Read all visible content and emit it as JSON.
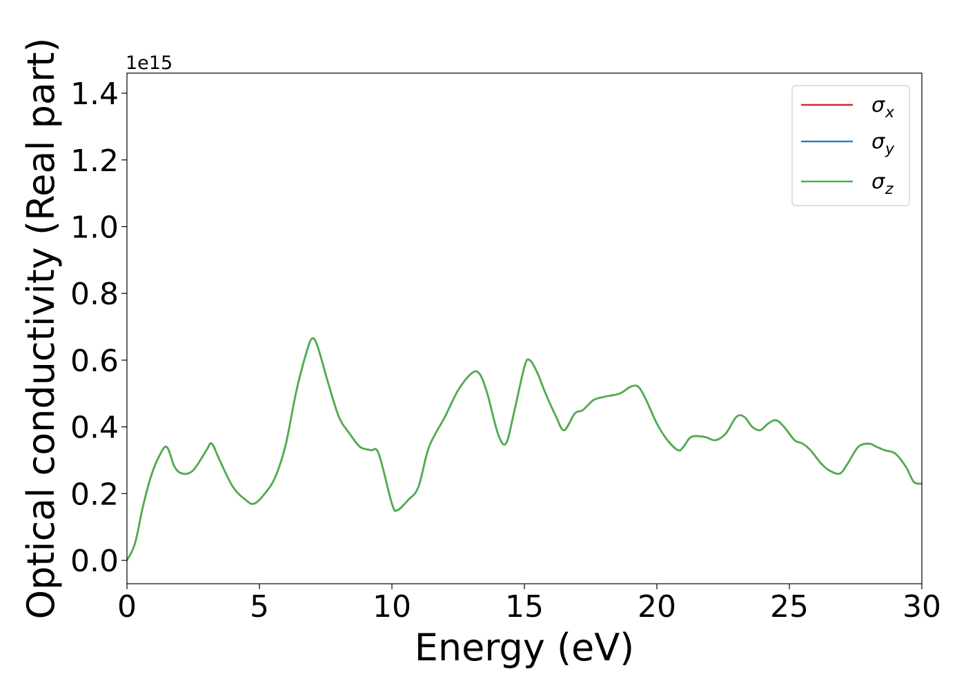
{
  "chart_data": {
    "type": "line",
    "xlabel": "Energy (eV)",
    "ylabel": "Optical conductivity (Real part)",
    "y_exponent_label": "1e15",
    "xlim": [
      0,
      30
    ],
    "ylim": [
      -0.07,
      1.46
    ],
    "x_ticks": [
      0,
      5,
      10,
      15,
      20,
      25,
      30
    ],
    "y_ticks": [
      0.0,
      0.2,
      0.4,
      0.6,
      0.8,
      1.0,
      1.2,
      1.4
    ],
    "x_tick_labels": [
      "0",
      "5",
      "10",
      "15",
      "20",
      "25",
      "30"
    ],
    "y_tick_labels": [
      "0.0",
      "0.2",
      "0.4",
      "0.6",
      "0.8",
      "1.0",
      "1.2",
      "1.4"
    ],
    "grid": false,
    "legend_position": "top-right",
    "series": [
      {
        "name": "σx",
        "symbol": "σ",
        "subscript": "x",
        "color": "#d62728",
        "x": [
          0,
          0.3,
          0.6,
          0.9,
          1.2,
          1.5,
          1.8,
          2.1,
          2.5,
          3.0,
          3.2,
          3.5,
          4.0,
          4.5,
          4.8,
          5.2,
          5.6,
          6.0,
          6.4,
          6.8,
          7.0,
          7.2,
          7.6,
          8.0,
          8.4,
          8.8,
          9.2,
          9.5,
          10.0,
          10.2,
          10.6,
          11.0,
          11.4,
          12.0,
          12.5,
          13.0,
          13.3,
          13.6,
          14.0,
          14.3,
          14.6,
          15.0,
          15.2,
          15.5,
          15.8,
          16.2,
          16.5,
          16.9,
          17.2,
          17.6,
          18.0,
          18.6,
          19.0,
          19.3,
          19.6,
          20.0,
          20.4,
          20.8,
          21.0,
          21.3,
          21.8,
          22.2,
          22.6,
          23.0,
          23.3,
          23.6,
          23.9,
          24.2,
          24.5,
          24.8,
          25.2,
          25.5,
          25.8,
          26.2,
          26.5,
          26.9,
          27.2,
          27.6,
          28.0,
          28.3,
          28.6,
          29.0,
          29.4,
          29.7,
          30.0
        ],
        "values": [
          0.0,
          0.05,
          0.16,
          0.25,
          0.31,
          0.34,
          0.28,
          0.26,
          0.27,
          0.33,
          0.35,
          0.3,
          0.22,
          0.18,
          0.17,
          0.2,
          0.25,
          0.35,
          0.51,
          0.63,
          0.665,
          0.64,
          0.53,
          0.43,
          0.38,
          0.34,
          0.33,
          0.32,
          0.17,
          0.15,
          0.18,
          0.22,
          0.34,
          0.43,
          0.51,
          0.56,
          0.56,
          0.5,
          0.38,
          0.35,
          0.44,
          0.58,
          0.6,
          0.56,
          0.5,
          0.43,
          0.39,
          0.44,
          0.45,
          0.48,
          0.49,
          0.5,
          0.52,
          0.52,
          0.48,
          0.41,
          0.36,
          0.33,
          0.34,
          0.37,
          0.37,
          0.36,
          0.38,
          0.43,
          0.43,
          0.4,
          0.39,
          0.41,
          0.42,
          0.4,
          0.36,
          0.35,
          0.33,
          0.29,
          0.27,
          0.26,
          0.29,
          0.34,
          0.35,
          0.34,
          0.33,
          0.32,
          0.28,
          0.235,
          0.23
        ]
      },
      {
        "name": "σy",
        "symbol": "σ",
        "subscript": "y",
        "color": "#377eb8",
        "x": [
          0,
          0.3,
          0.6,
          0.9,
          1.2,
          1.5,
          1.8,
          2.1,
          2.5,
          3.0,
          3.2,
          3.5,
          4.0,
          4.5,
          4.8,
          5.2,
          5.6,
          6.0,
          6.4,
          6.8,
          7.0,
          7.2,
          7.6,
          8.0,
          8.4,
          8.8,
          9.2,
          9.5,
          10.0,
          10.2,
          10.6,
          11.0,
          11.4,
          12.0,
          12.5,
          13.0,
          13.3,
          13.6,
          14.0,
          14.3,
          14.6,
          15.0,
          15.2,
          15.5,
          15.8,
          16.2,
          16.5,
          16.9,
          17.2,
          17.6,
          18.0,
          18.6,
          19.0,
          19.3,
          19.6,
          20.0,
          20.4,
          20.8,
          21.0,
          21.3,
          21.8,
          22.2,
          22.6,
          23.0,
          23.3,
          23.6,
          23.9,
          24.2,
          24.5,
          24.8,
          25.2,
          25.5,
          25.8,
          26.2,
          26.5,
          26.9,
          27.2,
          27.6,
          28.0,
          28.3,
          28.6,
          29.0,
          29.4,
          29.7,
          30.0
        ],
        "values": [
          0.0,
          0.05,
          0.16,
          0.25,
          0.31,
          0.34,
          0.28,
          0.26,
          0.27,
          0.33,
          0.35,
          0.3,
          0.22,
          0.18,
          0.17,
          0.2,
          0.25,
          0.35,
          0.51,
          0.63,
          0.665,
          0.64,
          0.53,
          0.43,
          0.38,
          0.34,
          0.33,
          0.32,
          0.17,
          0.15,
          0.18,
          0.22,
          0.34,
          0.43,
          0.51,
          0.56,
          0.56,
          0.5,
          0.38,
          0.35,
          0.44,
          0.58,
          0.6,
          0.56,
          0.5,
          0.43,
          0.39,
          0.44,
          0.45,
          0.48,
          0.49,
          0.5,
          0.52,
          0.52,
          0.48,
          0.41,
          0.36,
          0.33,
          0.34,
          0.37,
          0.37,
          0.36,
          0.38,
          0.43,
          0.43,
          0.4,
          0.39,
          0.41,
          0.42,
          0.4,
          0.36,
          0.35,
          0.33,
          0.29,
          0.27,
          0.26,
          0.29,
          0.34,
          0.35,
          0.34,
          0.33,
          0.32,
          0.28,
          0.235,
          0.23
        ]
      },
      {
        "name": "σz",
        "symbol": "σ",
        "subscript": "z",
        "color": "#4daf4a",
        "x": [
          0,
          0.3,
          0.6,
          0.9,
          1.2,
          1.5,
          1.8,
          2.1,
          2.5,
          3.0,
          3.2,
          3.5,
          4.0,
          4.5,
          4.8,
          5.2,
          5.6,
          6.0,
          6.4,
          6.8,
          7.0,
          7.2,
          7.6,
          8.0,
          8.4,
          8.8,
          9.2,
          9.5,
          10.0,
          10.2,
          10.6,
          11.0,
          11.4,
          12.0,
          12.5,
          13.0,
          13.3,
          13.6,
          14.0,
          14.3,
          14.6,
          15.0,
          15.2,
          15.5,
          15.8,
          16.2,
          16.5,
          16.9,
          17.2,
          17.6,
          18.0,
          18.6,
          19.0,
          19.3,
          19.6,
          20.0,
          20.4,
          20.8,
          21.0,
          21.3,
          21.8,
          22.2,
          22.6,
          23.0,
          23.3,
          23.6,
          23.9,
          24.2,
          24.5,
          24.8,
          25.2,
          25.5,
          25.8,
          26.2,
          26.5,
          26.9,
          27.2,
          27.6,
          28.0,
          28.3,
          28.6,
          29.0,
          29.4,
          29.7,
          30.0
        ],
        "values": [
          0.0,
          0.05,
          0.16,
          0.25,
          0.31,
          0.34,
          0.28,
          0.26,
          0.27,
          0.33,
          0.35,
          0.3,
          0.22,
          0.18,
          0.17,
          0.2,
          0.25,
          0.35,
          0.51,
          0.63,
          0.665,
          0.64,
          0.53,
          0.43,
          0.38,
          0.34,
          0.33,
          0.32,
          0.17,
          0.15,
          0.18,
          0.22,
          0.34,
          0.43,
          0.51,
          0.56,
          0.56,
          0.5,
          0.38,
          0.35,
          0.44,
          0.58,
          0.6,
          0.56,
          0.5,
          0.43,
          0.39,
          0.44,
          0.45,
          0.48,
          0.49,
          0.5,
          0.52,
          0.52,
          0.48,
          0.41,
          0.36,
          0.33,
          0.34,
          0.37,
          0.37,
          0.36,
          0.38,
          0.43,
          0.43,
          0.4,
          0.39,
          0.41,
          0.42,
          0.4,
          0.36,
          0.35,
          0.33,
          0.29,
          0.27,
          0.26,
          0.29,
          0.34,
          0.35,
          0.34,
          0.33,
          0.32,
          0.28,
          0.235,
          0.23
        ]
      }
    ]
  }
}
